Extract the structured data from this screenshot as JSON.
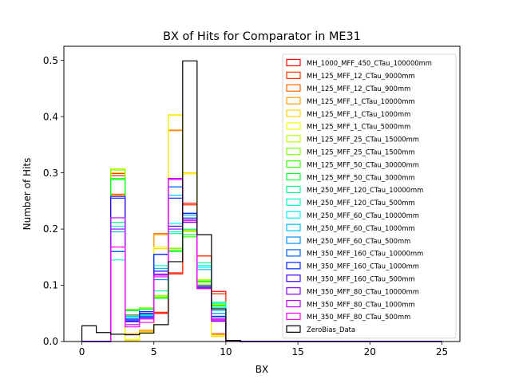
{
  "figure": {
    "title": "BX of Hits for Comparator in ME31",
    "xlabel": "BX",
    "ylabel": "Number of Hits"
  },
  "chart_data": {
    "type": "line",
    "drawstyle": "steps-post",
    "title": "BX of Hits for Comparator in ME31",
    "xlabel": "BX",
    "ylabel": "Number of Hits",
    "xlim": [
      -1.25,
      26.25
    ],
    "ylim": [
      0,
      0.525
    ],
    "xticks": [
      0,
      5,
      10,
      15,
      20,
      25
    ],
    "yticks": [
      0.0,
      0.1,
      0.2,
      0.3,
      0.4,
      0.5
    ],
    "xtick_labels": [
      "0",
      "5",
      "10",
      "15",
      "20",
      "25"
    ],
    "ytick_labels": [
      "0.0",
      "0.1",
      "0.2",
      "0.3",
      "0.4",
      "0.5"
    ],
    "grid": false,
    "legend_position": "top-right",
    "bin_edges": [
      0,
      1,
      2,
      3,
      4,
      5,
      6,
      7,
      8,
      9,
      10,
      11,
      12,
      13,
      14,
      15,
      16,
      17,
      18,
      19,
      20,
      21,
      22,
      23,
      24,
      25
    ],
    "series": [
      {
        "name": "MH_1000_MFF_450_CTau_100000mm",
        "color": "#ff0000",
        "values": [
          0,
          0,
          0.299,
          0.045,
          0.046,
          0.05,
          0.122,
          0.246,
          0.152,
          0.089,
          0.002,
          0,
          0,
          0,
          0,
          0,
          0,
          0,
          0,
          0,
          0,
          0,
          0,
          0,
          0
        ]
      },
      {
        "name": "MH_125_MFF_12_CTau_9000mm",
        "color": "#ff2f00",
        "values": [
          0,
          0,
          0.295,
          0.047,
          0.048,
          0.052,
          0.12,
          0.243,
          0.152,
          0.085,
          0.002,
          0,
          0,
          0,
          0,
          0,
          0,
          0,
          0,
          0,
          0,
          0,
          0,
          0,
          0
        ]
      },
      {
        "name": "MH_125_MFF_12_CTau_900mm",
        "color": "#ff6100",
        "values": [
          0,
          0,
          0.262,
          0.012,
          0.018,
          0.192,
          0.375,
          0.197,
          0.098,
          0.014,
          0.001,
          0,
          0,
          0,
          0,
          0,
          0,
          0,
          0,
          0,
          0,
          0,
          0,
          0,
          0
        ]
      },
      {
        "name": "MH_125_MFF_1_CTau_10000mm",
        "color": "#ffa100",
        "values": [
          0,
          0,
          0.26,
          0.014,
          0.02,
          0.19,
          0.376,
          0.199,
          0.096,
          0.012,
          0.001,
          0,
          0,
          0,
          0,
          0,
          0,
          0,
          0,
          0,
          0,
          0,
          0,
          0,
          0
        ]
      },
      {
        "name": "MH_125_MFF_1_CTau_1000mm",
        "color": "#ffd300",
        "values": [
          0,
          0,
          0.3,
          0.002,
          0.016,
          0.165,
          0.403,
          0.3,
          0.102,
          0.009,
          0.001,
          0,
          0,
          0,
          0,
          0,
          0,
          0,
          0,
          0,
          0,
          0,
          0,
          0,
          0
        ]
      },
      {
        "name": "MH_125_MFF_1_CTau_5000mm",
        "color": "#f0ff00",
        "values": [
          0,
          0,
          0.305,
          0.004,
          0.017,
          0.168,
          0.402,
          0.298,
          0.1,
          0.01,
          0.001,
          0,
          0,
          0,
          0,
          0,
          0,
          0,
          0,
          0,
          0,
          0,
          0,
          0,
          0
        ]
      },
      {
        "name": "MH_125_MFF_25_CTau_15000mm",
        "color": "#b8ff00",
        "values": [
          0,
          0,
          0.307,
          0.056,
          0.058,
          0.08,
          0.165,
          0.198,
          0.11,
          0.066,
          0.002,
          0,
          0,
          0,
          0,
          0,
          0,
          0,
          0,
          0,
          0,
          0,
          0,
          0,
          0
        ]
      },
      {
        "name": "MH_125_MFF_25_CTau_1500mm",
        "color": "#7dff00",
        "values": [
          0,
          0,
          0.305,
          0.057,
          0.06,
          0.082,
          0.166,
          0.196,
          0.108,
          0.065,
          0.002,
          0,
          0,
          0,
          0,
          0,
          0,
          0,
          0,
          0,
          0,
          0,
          0,
          0,
          0
        ]
      },
      {
        "name": "MH_125_MFF_50_CTau_30000mm",
        "color": "#35ff00",
        "values": [
          0,
          0,
          0.29,
          0.056,
          0.058,
          0.078,
          0.162,
          0.186,
          0.107,
          0.064,
          0.002,
          0,
          0,
          0,
          0,
          0,
          0,
          0,
          0,
          0,
          0,
          0,
          0,
          0,
          0
        ]
      },
      {
        "name": "MH_125_MFF_50_CTau_3000mm",
        "color": "#00ff3a",
        "values": [
          0,
          0,
          0.288,
          0.055,
          0.057,
          0.077,
          0.16,
          0.19,
          0.106,
          0.063,
          0.002,
          0,
          0,
          0,
          0,
          0,
          0,
          0,
          0,
          0,
          0,
          0,
          0,
          0,
          0
        ]
      },
      {
        "name": "MH_250_MFF_120_CTau_10000mm",
        "color": "#00ff8a",
        "values": [
          0,
          0,
          0.212,
          0.046,
          0.05,
          0.09,
          0.192,
          0.215,
          0.14,
          0.07,
          0.002,
          0,
          0,
          0,
          0,
          0,
          0,
          0,
          0,
          0,
          0,
          0,
          0,
          0,
          0
        ]
      },
      {
        "name": "MH_250_MFF_120_CTau_500mm",
        "color": "#00ffc4",
        "values": [
          0,
          0,
          0.145,
          0.043,
          0.046,
          0.135,
          0.195,
          0.2,
          0.135,
          0.068,
          0.002,
          0,
          0,
          0,
          0,
          0,
          0,
          0,
          0,
          0,
          0,
          0,
          0,
          0,
          0
        ]
      },
      {
        "name": "MH_250_MFF_60_CTau_10000mm",
        "color": "#00f3ff",
        "values": [
          0,
          0,
          0.205,
          0.045,
          0.049,
          0.125,
          0.21,
          0.215,
          0.132,
          0.06,
          0.002,
          0,
          0,
          0,
          0,
          0,
          0,
          0,
          0,
          0,
          0,
          0,
          0,
          0,
          0
        ]
      },
      {
        "name": "MH_250_MFF_60_CTau_1000mm",
        "color": "#00c2ff",
        "values": [
          0,
          0,
          0.195,
          0.044,
          0.048,
          0.13,
          0.26,
          0.22,
          0.128,
          0.055,
          0.002,
          0,
          0,
          0,
          0,
          0,
          0,
          0,
          0,
          0,
          0,
          0,
          0,
          0,
          0
        ]
      },
      {
        "name": "MH_250_MFF_60_CTau_500mm",
        "color": "#0090ff",
        "values": [
          0,
          0,
          0.16,
          0.04,
          0.045,
          0.11,
          0.275,
          0.225,
          0.1,
          0.05,
          0.002,
          0,
          0,
          0,
          0,
          0,
          0,
          0,
          0,
          0,
          0,
          0,
          0,
          0,
          0
        ]
      },
      {
        "name": "MH_350_MFF_160_CTau_10000mm",
        "color": "#005eff",
        "values": [
          0,
          0,
          0.16,
          0.038,
          0.044,
          0.155,
          0.275,
          0.228,
          0.096,
          0.045,
          0.002,
          0,
          0,
          0,
          0,
          0,
          0,
          0,
          0,
          0,
          0,
          0,
          0,
          0,
          0
        ]
      },
      {
        "name": "MH_350_MFF_160_CTau_1000mm",
        "color": "#0024ff",
        "values": [
          0,
          0,
          0.255,
          0.04,
          0.053,
          0.155,
          0.255,
          0.228,
          0.097,
          0.044,
          0.002,
          0,
          0,
          0,
          0,
          0,
          0,
          0,
          0,
          0,
          0,
          0,
          0,
          0,
          0
        ]
      },
      {
        "name": "MH_350_MFF_160_CTau_500mm",
        "color": "#3c00ff",
        "values": [
          0,
          0,
          0.258,
          0.036,
          0.05,
          0.125,
          0.205,
          0.215,
          0.095,
          0.04,
          0.002,
          0,
          0,
          0,
          0,
          0,
          0,
          0,
          0,
          0,
          0,
          0,
          0,
          0,
          0
        ]
      },
      {
        "name": "MH_350_MFF_80_CTau_10000mm",
        "color": "#8200ff",
        "values": [
          0,
          0,
          0.2,
          0.035,
          0.042,
          0.12,
          0.2,
          0.212,
          0.094,
          0.036,
          0.002,
          0,
          0,
          0,
          0,
          0,
          0,
          0,
          0,
          0,
          0,
          0,
          0,
          0,
          0
        ]
      },
      {
        "name": "MH_350_MFF_80_CTau_1000mm",
        "color": "#bc00ff",
        "values": [
          0,
          0,
          0.22,
          0.03,
          0.04,
          0.118,
          0.29,
          0.218,
          0.095,
          0.04,
          0.002,
          0,
          0,
          0,
          0,
          0,
          0,
          0,
          0,
          0,
          0,
          0,
          0,
          0,
          0
        ]
      },
      {
        "name": "MH_350_MFF_80_CTau_500mm",
        "color": "#ff00f4",
        "values": [
          0,
          0,
          0.168,
          0.026,
          0.034,
          0.115,
          0.288,
          0.215,
          0.095,
          0.038,
          0.002,
          0,
          0,
          0,
          0,
          0,
          0,
          0,
          0,
          0,
          0,
          0,
          0,
          0,
          0
        ]
      },
      {
        "name": "ZeroBias_Data",
        "color": "#000000",
        "values": [
          0.028,
          0.016,
          0.013,
          0.012,
          0.015,
          0.03,
          0.142,
          0.499,
          0.19,
          0.058,
          0.002,
          0,
          0,
          0,
          0,
          0,
          0,
          0,
          0,
          0,
          0,
          0,
          0,
          0,
          0
        ]
      }
    ]
  }
}
